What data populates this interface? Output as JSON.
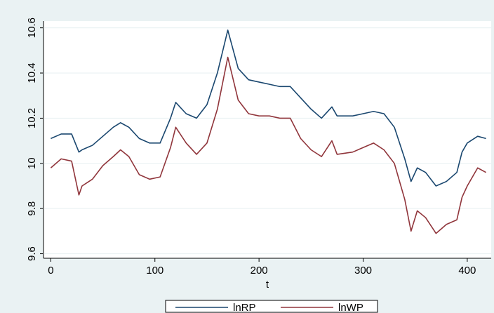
{
  "chart_data": {
    "type": "line",
    "x_label": "t",
    "x": [
      0,
      10,
      20,
      27,
      30,
      40,
      50,
      60,
      67,
      75,
      85,
      95,
      105,
      115,
      120,
      130,
      140,
      150,
      160,
      170,
      180,
      190,
      200,
      210,
      220,
      230,
      240,
      250,
      260,
      270,
      275,
      290,
      300,
      310,
      320,
      330,
      340,
      346,
      352,
      360,
      370,
      380,
      390,
      395,
      400,
      410,
      418
    ],
    "series": [
      {
        "name": "lnRP",
        "color": "#1a476f",
        "values": [
          10.11,
          10.13,
          10.13,
          10.05,
          10.06,
          10.08,
          10.12,
          10.16,
          10.18,
          10.16,
          10.11,
          10.09,
          10.09,
          10.2,
          10.27,
          10.22,
          10.2,
          10.26,
          10.4,
          10.59,
          10.42,
          10.37,
          10.36,
          10.35,
          10.34,
          10.34,
          10.29,
          10.24,
          10.2,
          10.25,
          10.21,
          10.21,
          10.22,
          10.23,
          10.22,
          10.16,
          10.02,
          9.92,
          9.98,
          9.96,
          9.9,
          9.92,
          9.96,
          10.05,
          10.09,
          10.12,
          10.11
        ]
      },
      {
        "name": "lnWP",
        "color": "#90353b",
        "values": [
          9.98,
          10.02,
          10.01,
          9.86,
          9.9,
          9.93,
          9.99,
          10.03,
          10.06,
          10.03,
          9.95,
          9.93,
          9.94,
          10.07,
          10.16,
          10.09,
          10.04,
          10.09,
          10.24,
          10.47,
          10.28,
          10.22,
          10.21,
          10.21,
          10.2,
          10.2,
          10.11,
          10.06,
          10.03,
          10.1,
          10.04,
          10.05,
          10.07,
          10.09,
          10.06,
          10.0,
          9.84,
          9.7,
          9.79,
          9.76,
          9.69,
          9.73,
          9.75,
          9.85,
          9.9,
          9.98,
          9.96
        ]
      }
    ],
    "xlim": [
      -7,
      423
    ],
    "xticks": [
      0,
      100,
      200,
      300,
      400
    ],
    "ylim": [
      9.58,
      10.63
    ],
    "yticks": [
      9.6,
      9.8,
      10,
      10.2,
      10.4,
      10.6
    ],
    "grid": true
  }
}
